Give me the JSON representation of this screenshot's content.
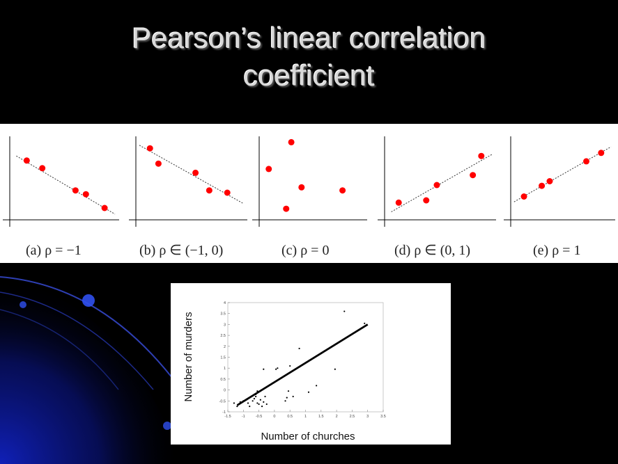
{
  "slide": {
    "title_line1": "Pearson’s linear correlation",
    "title_line2": "coefficient"
  },
  "colors": {
    "background": "#000000",
    "title": "#d9d9d9",
    "point_red": "#ff0000",
    "swoosh_blue": "#1a2ab8"
  },
  "chart_data": [
    {
      "type": "scatter",
      "caption": "(a)  ρ = −1",
      "points": [
        [
          0.15,
          0.72
        ],
        [
          0.3,
          0.62
        ],
        [
          0.62,
          0.33
        ],
        [
          0.72,
          0.28
        ],
        [
          0.9,
          0.1
        ]
      ],
      "trend": [
        [
          0.05,
          0.78
        ],
        [
          1.0,
          0.02
        ]
      ],
      "xlim": [
        0,
        1
      ],
      "ylim": [
        0,
        1
      ]
    },
    {
      "type": "scatter",
      "caption": "(b)  ρ ∈ (−1, 0)",
      "points": [
        [
          0.12,
          0.88
        ],
        [
          0.2,
          0.68
        ],
        [
          0.55,
          0.56
        ],
        [
          0.68,
          0.33
        ],
        [
          0.85,
          0.3
        ]
      ],
      "trend": [
        [
          0.02,
          0.92
        ],
        [
          1.0,
          0.16
        ]
      ],
      "xlim": [
        0,
        1
      ],
      "ylim": [
        0,
        1
      ]
    },
    {
      "type": "scatter",
      "caption": "(c)  ρ = 0",
      "points": [
        [
          0.08,
          0.61
        ],
        [
          0.3,
          0.96
        ],
        [
          0.25,
          0.09
        ],
        [
          0.4,
          0.37
        ],
        [
          0.8,
          0.33
        ]
      ],
      "trend": [],
      "xlim": [
        0,
        1
      ],
      "ylim": [
        0,
        1
      ]
    },
    {
      "type": "scatter",
      "caption": "(d)  ρ ∈ (0, 1)",
      "points": [
        [
          0.12,
          0.17
        ],
        [
          0.38,
          0.2
        ],
        [
          0.48,
          0.4
        ],
        [
          0.82,
          0.53
        ],
        [
          0.9,
          0.78
        ]
      ],
      "trend": [
        [
          0.05,
          0.05
        ],
        [
          1.0,
          0.8
        ]
      ],
      "xlim": [
        0,
        1
      ],
      "ylim": [
        0,
        1
      ]
    },
    {
      "type": "scatter",
      "caption": "(e)  ρ = 1",
      "points": [
        [
          0.12,
          0.25
        ],
        [
          0.3,
          0.39
        ],
        [
          0.38,
          0.45
        ],
        [
          0.75,
          0.71
        ],
        [
          0.9,
          0.82
        ]
      ],
      "trend": [
        [
          0.02,
          0.18
        ],
        [
          1.0,
          0.9
        ]
      ],
      "xlim": [
        0,
        1
      ],
      "ylim": [
        0,
        1
      ]
    },
    {
      "type": "scatter",
      "xlabel": "Number of churches",
      "ylabel": "Number of murders",
      "xlim": [
        -1.5,
        3.5
      ],
      "ylim": [
        -1,
        4
      ],
      "xticks": [
        "-1.5",
        "-1",
        "-0.5",
        "0",
        "0.5",
        "1",
        "1.5",
        "2",
        "2.5",
        "3",
        "3.5"
      ],
      "yticks": [
        "-1",
        "-0.5",
        "0",
        "0.5",
        "1",
        "1.5",
        "2",
        "2.5",
        "3",
        "3.5",
        "4"
      ],
      "points": [
        [
          -1.3,
          -0.6
        ],
        [
          -1.2,
          -0.75
        ],
        [
          -1.1,
          -0.55
        ],
        [
          -1.0,
          -0.5
        ],
        [
          -0.9,
          -0.45
        ],
        [
          -0.85,
          -0.6
        ],
        [
          -0.8,
          -0.75
        ],
        [
          -0.7,
          -0.5
        ],
        [
          -0.65,
          -0.4
        ],
        [
          -0.6,
          -0.2
        ],
        [
          -0.55,
          -0.6
        ],
        [
          -0.5,
          -0.65
        ],
        [
          -0.45,
          -0.45
        ],
        [
          -0.4,
          -0.75
        ],
        [
          -0.35,
          -0.55
        ],
        [
          -0.3,
          -0.3
        ],
        [
          -0.55,
          -0.05
        ],
        [
          -0.45,
          -0.05
        ],
        [
          -0.35,
          0.95
        ],
        [
          0.05,
          0.95
        ],
        [
          0.1,
          1.0
        ],
        [
          0.35,
          -0.5
        ],
        [
          0.4,
          -0.35
        ],
        [
          0.45,
          -0.05
        ],
        [
          0.5,
          1.1
        ],
        [
          0.6,
          -0.3
        ],
        [
          0.8,
          1.9
        ],
        [
          1.1,
          -0.1
        ],
        [
          1.35,
          0.2
        ],
        [
          1.95,
          0.95
        ],
        [
          2.25,
          3.6
        ],
        [
          2.9,
          3.05
        ],
        [
          -0.25,
          -0.65
        ],
        [
          -0.6,
          -0.3
        ]
      ],
      "trend": [
        [
          -1.2,
          -0.7
        ],
        [
          3.0,
          3.0
        ]
      ]
    }
  ]
}
